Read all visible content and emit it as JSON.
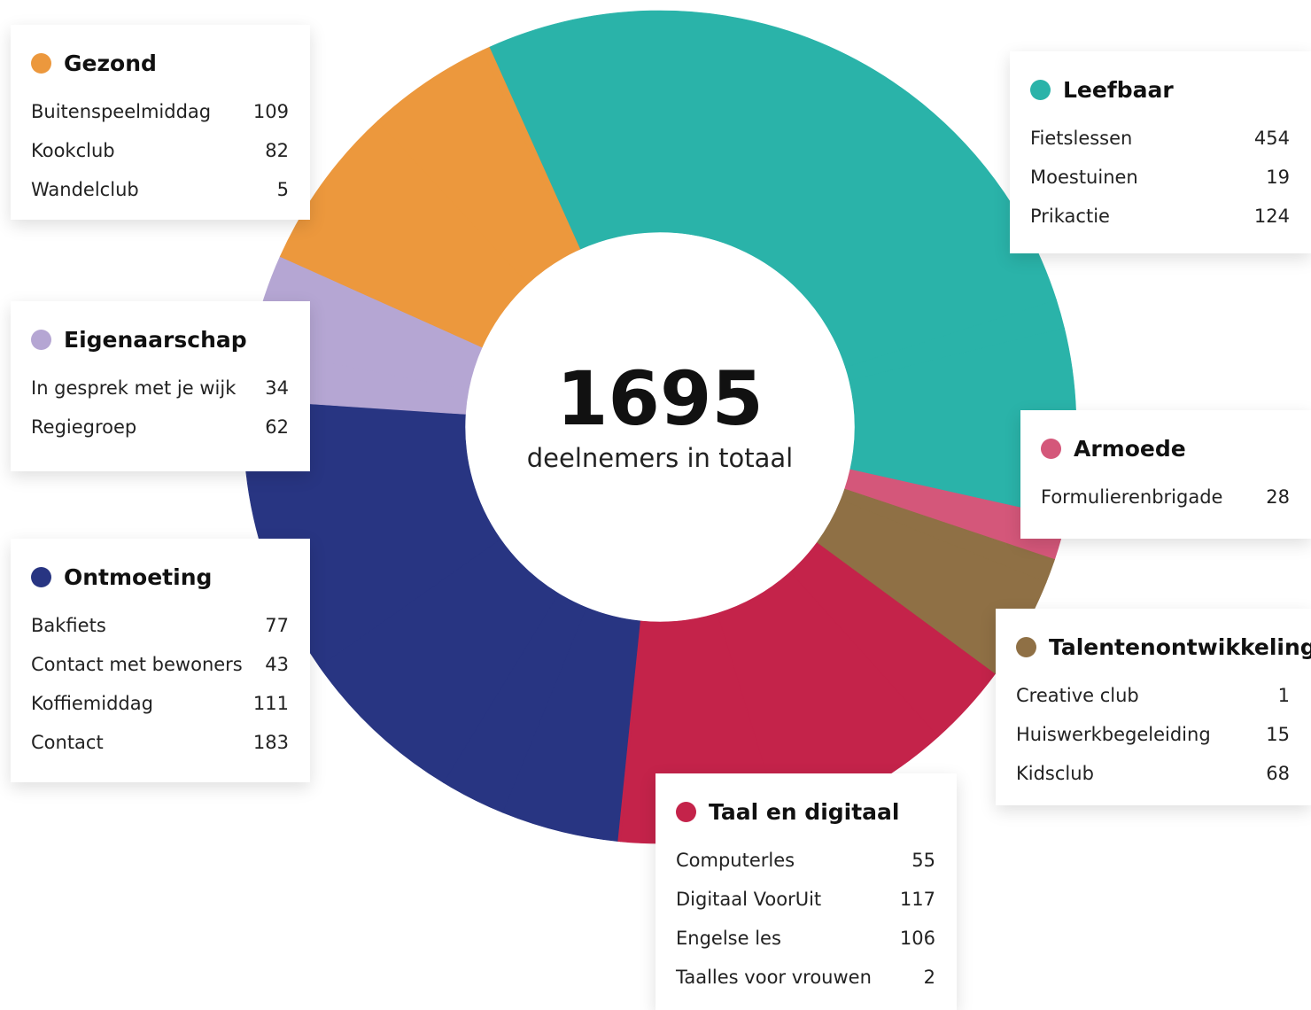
{
  "chart_data": {
    "type": "donut",
    "total": 1695,
    "center_label": "deelnemers in totaal",
    "groups": [
      {
        "name": "Leefbaar",
        "color": "#2ab3a9",
        "items": [
          {
            "label": "Fietslessen",
            "value": 454
          },
          {
            "label": "Moestuinen",
            "value": 19
          },
          {
            "label": "Prikactie",
            "value": 124
          }
        ]
      },
      {
        "name": "Armoede",
        "color": "#d4577a",
        "items": [
          {
            "label": "Formulierenbrigade",
            "value": 28
          }
        ]
      },
      {
        "name": "Talentenontwikkeling",
        "color": "#8f7045",
        "items": [
          {
            "label": "Creative club",
            "value": 1
          },
          {
            "label": "Huiswerkbegeleiding",
            "value": 15
          },
          {
            "label": "Kidsclub",
            "value": 68
          }
        ]
      },
      {
        "name": "Taal en digitaal",
        "color": "#c4234a",
        "items": [
          {
            "label": "Computerles",
            "value": 55
          },
          {
            "label": "Digitaal VoorUit",
            "value": 117
          },
          {
            "label": "Engelse les",
            "value": 106
          },
          {
            "label": "Taalles voor vrouwen",
            "value": 2
          }
        ]
      },
      {
        "name": "Ontmoeting",
        "color": "#283582",
        "items": [
          {
            "label": "Bakfiets",
            "value": 77
          },
          {
            "label": "Contact met bewoners",
            "value": 43
          },
          {
            "label": "Koffiemiddag",
            "value": 111
          },
          {
            "label": "Contact",
            "value": 183
          }
        ]
      },
      {
        "name": "Eigenaarschap",
        "color": "#b5a6d3",
        "items": [
          {
            "label": "In gesprek met je wijk",
            "value": 34
          },
          {
            "label": "Regiegroep",
            "value": 62
          }
        ]
      },
      {
        "name": "Gezond",
        "color": "#ec983d",
        "items": [
          {
            "label": "Buitenspeelmiddag",
            "value": 109
          },
          {
            "label": "Kookclub",
            "value": 82
          },
          {
            "label": "Wandelclub",
            "value": 5
          }
        ]
      }
    ]
  }
}
